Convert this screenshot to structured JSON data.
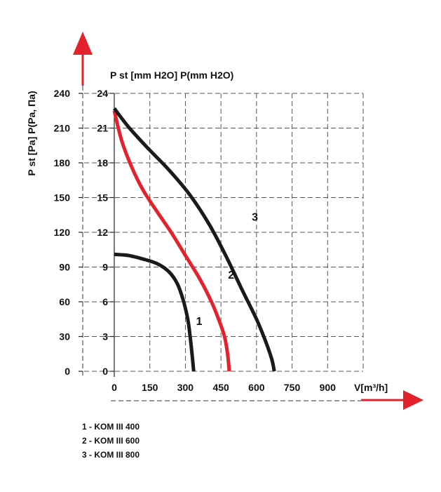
{
  "chart_data": {
    "type": "line",
    "x_label": "V[m³/h]",
    "y_left_label": "P st [Pa] P(Pa, Па)",
    "y_inner_label": "P st [mm H2O] P(mm H2O)",
    "x_ticks": [
      0,
      150,
      300,
      450,
      600,
      750,
      900
    ],
    "x_range": [
      0,
      1050
    ],
    "y_ticks_pa": [
      0,
      30,
      60,
      90,
      120,
      150,
      180,
      210,
      240
    ],
    "y_ticks_mm": [
      0,
      3,
      6,
      9,
      12,
      15,
      18,
      21,
      24
    ],
    "y_range_pa": [
      0,
      240
    ],
    "grid": true,
    "series": [
      {
        "name": "1",
        "color": "#1a1a1a",
        "points": [
          [
            0,
            101
          ],
          [
            60,
            100
          ],
          [
            120,
            97
          ],
          [
            180,
            93
          ],
          [
            230,
            86
          ],
          [
            265,
            76
          ],
          [
            290,
            62
          ],
          [
            310,
            45
          ],
          [
            320,
            30
          ],
          [
            328,
            15
          ],
          [
            335,
            0
          ]
        ]
      },
      {
        "name": "2",
        "color": "#e3222c",
        "points": [
          [
            0,
            225
          ],
          [
            30,
            200
          ],
          [
            70,
            178
          ],
          [
            120,
            157
          ],
          [
            180,
            138
          ],
          [
            240,
            120
          ],
          [
            300,
            100
          ],
          [
            360,
            80
          ],
          [
            410,
            60
          ],
          [
            440,
            45
          ],
          [
            465,
            30
          ],
          [
            478,
            15
          ],
          [
            485,
            0
          ]
        ]
      },
      {
        "name": "3",
        "color": "#1a1a1a",
        "points": [
          [
            0,
            227
          ],
          [
            60,
            211
          ],
          [
            140,
            193
          ],
          [
            230,
            174
          ],
          [
            320,
            152
          ],
          [
            400,
            127
          ],
          [
            470,
            100
          ],
          [
            540,
            70
          ],
          [
            600,
            45
          ],
          [
            640,
            25
          ],
          [
            665,
            10
          ],
          [
            675,
            0
          ]
        ]
      }
    ],
    "curve_labels": [
      {
        "text": "1",
        "x": 345,
        "y": 40
      },
      {
        "text": "2",
        "x": 480,
        "y": 80
      },
      {
        "text": "3",
        "x": 580,
        "y": 130
      }
    ]
  },
  "legend": [
    "1 - KOM III 400",
    "2 - KOM III 600",
    "3 - KOM III 800"
  ]
}
